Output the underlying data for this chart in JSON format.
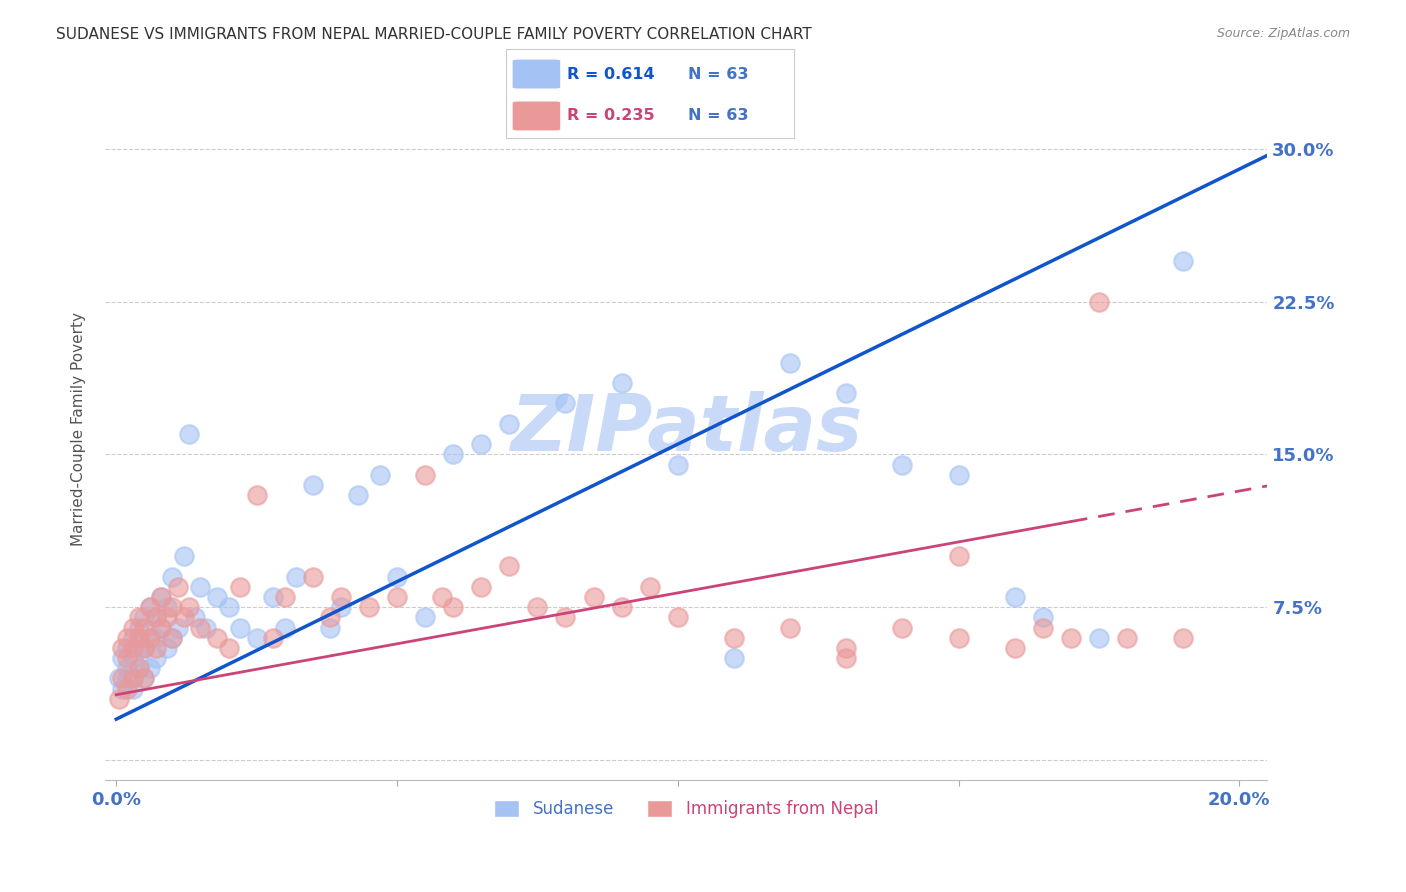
{
  "title": "SUDANESE VS IMMIGRANTS FROM NEPAL MARRIED-COUPLE FAMILY POVERTY CORRELATION CHART",
  "source_text": "Source: ZipAtlas.com",
  "ylabel": "Married-Couple Family Poverty",
  "legend_blue_r": "R = 0.614",
  "legend_blue_n": "N = 63",
  "legend_pink_r": "R = 0.235",
  "legend_pink_n": "N = 63",
  "legend_label_blue": "Sudanese",
  "legend_label_pink": "Immigrants from Nepal",
  "xlim": [
    -0.002,
    0.205
  ],
  "ylim": [
    -0.01,
    0.335
  ],
  "blue_color": "#a4c2f4",
  "pink_color": "#ea9999",
  "blue_line_color": "#1155cc",
  "pink_line_color": "#cc4477",
  "title_color": "#333333",
  "axis_label_color": "#555555",
  "tick_color_blue": "#4472c4",
  "watermark_color": "#c9daf8",
  "blue_line_intercept": 0.02,
  "blue_line_slope": 1.35,
  "pink_line_intercept": 0.032,
  "pink_line_slope": 0.5,
  "blue_scatter_x": [
    0.0005,
    0.001,
    0.001,
    0.002,
    0.002,
    0.002,
    0.003,
    0.003,
    0.003,
    0.003,
    0.004,
    0.004,
    0.004,
    0.005,
    0.005,
    0.005,
    0.006,
    0.006,
    0.006,
    0.007,
    0.007,
    0.007,
    0.008,
    0.008,
    0.009,
    0.009,
    0.01,
    0.01,
    0.011,
    0.012,
    0.013,
    0.014,
    0.015,
    0.016,
    0.018,
    0.02,
    0.022,
    0.025,
    0.028,
    0.03,
    0.032,
    0.035,
    0.038,
    0.04,
    0.043,
    0.047,
    0.05,
    0.055,
    0.06,
    0.065,
    0.07,
    0.08,
    0.09,
    0.1,
    0.11,
    0.12,
    0.13,
    0.14,
    0.15,
    0.16,
    0.165,
    0.175,
    0.19
  ],
  "blue_scatter_y": [
    0.04,
    0.035,
    0.05,
    0.04,
    0.045,
    0.055,
    0.04,
    0.05,
    0.06,
    0.035,
    0.045,
    0.055,
    0.065,
    0.04,
    0.055,
    0.07,
    0.06,
    0.045,
    0.075,
    0.06,
    0.05,
    0.07,
    0.065,
    0.08,
    0.055,
    0.075,
    0.06,
    0.09,
    0.065,
    0.1,
    0.16,
    0.07,
    0.085,
    0.065,
    0.08,
    0.075,
    0.065,
    0.06,
    0.08,
    0.065,
    0.09,
    0.135,
    0.065,
    0.075,
    0.13,
    0.14,
    0.09,
    0.07,
    0.15,
    0.155,
    0.165,
    0.175,
    0.185,
    0.145,
    0.05,
    0.195,
    0.18,
    0.145,
    0.14,
    0.08,
    0.07,
    0.06,
    0.245
  ],
  "pink_scatter_x": [
    0.0005,
    0.001,
    0.001,
    0.002,
    0.002,
    0.002,
    0.003,
    0.003,
    0.003,
    0.004,
    0.004,
    0.004,
    0.005,
    0.005,
    0.005,
    0.006,
    0.006,
    0.007,
    0.007,
    0.008,
    0.008,
    0.009,
    0.01,
    0.01,
    0.011,
    0.012,
    0.013,
    0.015,
    0.018,
    0.02,
    0.022,
    0.025,
    0.028,
    0.03,
    0.035,
    0.038,
    0.04,
    0.045,
    0.05,
    0.055,
    0.058,
    0.06,
    0.065,
    0.07,
    0.075,
    0.08,
    0.085,
    0.09,
    0.095,
    0.1,
    0.11,
    0.12,
    0.13,
    0.14,
    0.15,
    0.16,
    0.165,
    0.17,
    0.175,
    0.18,
    0.19,
    0.15,
    0.13
  ],
  "pink_scatter_y": [
    0.03,
    0.04,
    0.055,
    0.035,
    0.05,
    0.06,
    0.04,
    0.055,
    0.065,
    0.045,
    0.06,
    0.07,
    0.04,
    0.055,
    0.065,
    0.06,
    0.075,
    0.055,
    0.07,
    0.065,
    0.08,
    0.07,
    0.06,
    0.075,
    0.085,
    0.07,
    0.075,
    0.065,
    0.06,
    0.055,
    0.085,
    0.13,
    0.06,
    0.08,
    0.09,
    0.07,
    0.08,
    0.075,
    0.08,
    0.14,
    0.08,
    0.075,
    0.085,
    0.095,
    0.075,
    0.07,
    0.08,
    0.075,
    0.085,
    0.07,
    0.06,
    0.065,
    0.055,
    0.065,
    0.06,
    0.055,
    0.065,
    0.06,
    0.225,
    0.06,
    0.06,
    0.1,
    0.05
  ]
}
